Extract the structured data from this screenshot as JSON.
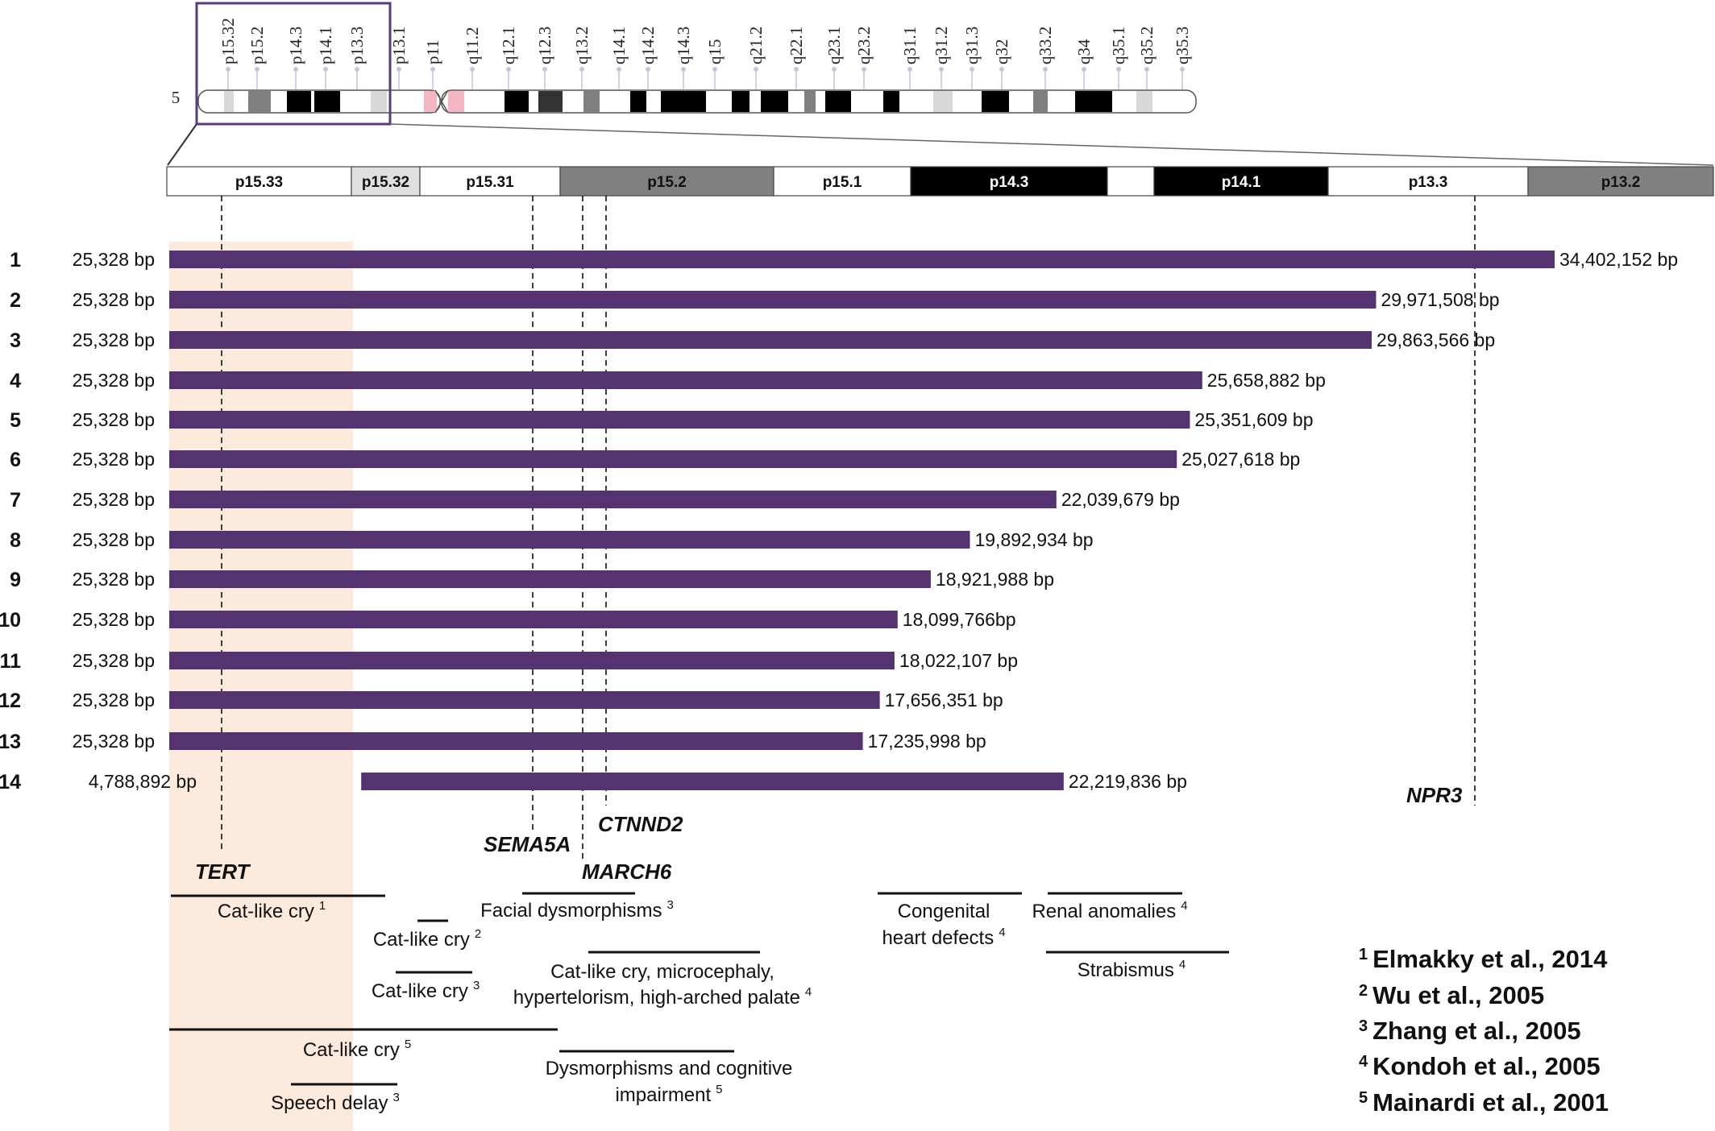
{
  "chromosome": {
    "number": "5",
    "bands": [
      {
        "label": "p15.32"
      },
      {
        "label": "p15.2"
      },
      {
        "label": "p14.3"
      },
      {
        "label": "p14.1"
      },
      {
        "label": "p13.3"
      },
      {
        "label": "p13.1"
      },
      {
        "label": "p11"
      },
      {
        "label": "q11.2"
      },
      {
        "label": "q12.1"
      },
      {
        "label": "q12.3"
      },
      {
        "label": "q13.2"
      },
      {
        "label": "q14.1"
      },
      {
        "label": "q14.2"
      },
      {
        "label": "q14.3"
      },
      {
        "label": "q15"
      },
      {
        "label": "q21.2"
      },
      {
        "label": "q22.1"
      },
      {
        "label": "q23.1"
      },
      {
        "label": "q23.2"
      },
      {
        "label": "q31.1"
      },
      {
        "label": "q31.2"
      },
      {
        "label": "q31.3"
      },
      {
        "label": "q32"
      },
      {
        "label": "q33.2"
      },
      {
        "label": "q34"
      },
      {
        "label": "q35.1"
      },
      {
        "label": "q35.2"
      },
      {
        "label": "q35.3"
      }
    ]
  },
  "zoom_bands": [
    {
      "label": "p15.33",
      "fill": "#ffffff",
      "text": "#111111"
    },
    {
      "label": "p15.32",
      "fill": "#e0e0e0",
      "text": "#111111"
    },
    {
      "label": "p15.31",
      "fill": "#ffffff",
      "text": "#111111"
    },
    {
      "label": "p15.2",
      "fill": "#808080",
      "text": "#111111"
    },
    {
      "label": "p15.1",
      "fill": "#ffffff",
      "text": "#111111"
    },
    {
      "label": "p14.3",
      "fill": "#000000",
      "text": "#ffffff"
    },
    {
      "label": "",
      "fill": "#ffffff",
      "text": "#111111"
    },
    {
      "label": "p14.1",
      "fill": "#000000",
      "text": "#ffffff"
    },
    {
      "label": "p13.3",
      "fill": "#ffffff",
      "text": "#111111"
    },
    {
      "label": "p13.2",
      "fill": "#808080",
      "text": "#111111"
    }
  ],
  "deletions": [
    {
      "row": "1",
      "start_label": "25,328 bp",
      "end_label": "34,402,152 bp",
      "start": 25328,
      "end": 34402152
    },
    {
      "row": "2",
      "start_label": "25,328 bp",
      "end_label": "29,971,508 bp",
      "start": 25328,
      "end": 29971508
    },
    {
      "row": "3",
      "start_label": "25,328 bp",
      "end_label": "29,863,566 bp",
      "start": 25328,
      "end": 29863566
    },
    {
      "row": "4",
      "start_label": "25,328 bp",
      "end_label": "25,658,882 bp",
      "start": 25328,
      "end": 25658882
    },
    {
      "row": "5",
      "start_label": "25,328 bp",
      "end_label": "25,351,609 bp",
      "start": 25328,
      "end": 25351609
    },
    {
      "row": "6",
      "start_label": "25,328 bp",
      "end_label": "25,027,618 bp",
      "start": 25328,
      "end": 25027618
    },
    {
      "row": "7",
      "start_label": "25,328 bp",
      "end_label": "22,039,679 bp",
      "start": 25328,
      "end": 22039679
    },
    {
      "row": "8",
      "start_label": "25,328 bp",
      "end_label": "19,892,934 bp",
      "start": 25328,
      "end": 19892934
    },
    {
      "row": "9",
      "start_label": "25,328 bp",
      "end_label": "18,921,988 bp",
      "start": 25328,
      "end": 18921988
    },
    {
      "row": "10",
      "start_label": "25,328 bp",
      "end_label": "18,099,766bp",
      "start": 25328,
      "end": 18099766
    },
    {
      "row": "11",
      "start_label": "25,328 bp",
      "end_label": "18,022,107 bp",
      "start": 25328,
      "end": 18022107
    },
    {
      "row": "12",
      "start_label": "25,328 bp",
      "end_label": "17,656,351 bp",
      "start": 25328,
      "end": 17656351
    },
    {
      "row": "13",
      "start_label": "25,328 bp",
      "end_label": "17,235,998 bp",
      "start": 25328,
      "end": 17235998
    },
    {
      "row": "14",
      "start_label": "4,788,892 bp",
      "end_label": "22,219,836 bp",
      "start": 4788892,
      "end": 22219836
    }
  ],
  "genes": [
    {
      "name": "TERT"
    },
    {
      "name": "SEMA5A"
    },
    {
      "name": "MARCH6"
    },
    {
      "name": "CTNND2"
    },
    {
      "name": "NPR3"
    }
  ],
  "phenotypes": [
    {
      "text": "Cat-like cry",
      "ref": "1"
    },
    {
      "text": "Cat-like cry",
      "ref": "2"
    },
    {
      "text": "Cat-like cry",
      "ref": "3"
    },
    {
      "text": "Facial dysmorphisms",
      "ref": "3"
    },
    {
      "text": "Cat-like cry, microcephaly,",
      "text2": "hypertelorism, high-arched palate",
      "ref": "4"
    },
    {
      "text": "Congenital",
      "text2": "heart defects",
      "ref": "4"
    },
    {
      "text": "Renal anomalies",
      "ref": "4"
    },
    {
      "text": "Strabismus",
      "ref": "4"
    },
    {
      "text": "Cat-like cry",
      "ref": "5"
    },
    {
      "text": "Dysmorphisms and cognitive",
      "text2": "impairment",
      "ref": "5"
    },
    {
      "text": "Speech delay",
      "ref": "3"
    }
  ],
  "references": [
    {
      "num": "1",
      "text": "Elmakky et al., 2014"
    },
    {
      "num": "2",
      "text": "Wu et al., 2005"
    },
    {
      "num": "3",
      "text": "Zhang et al., 2005"
    },
    {
      "num": "4",
      "text": "Kondoh et al., 2005"
    },
    {
      "num": "5",
      "text": "Mainardi et al., 2001"
    }
  ],
  "colors": {
    "deletion_bar": "#553371",
    "highlight": "#fcebdc",
    "zoom_box": "#5b3a7e",
    "centromere": "#f4b6c2",
    "band_tick": "#c9c3de"
  }
}
